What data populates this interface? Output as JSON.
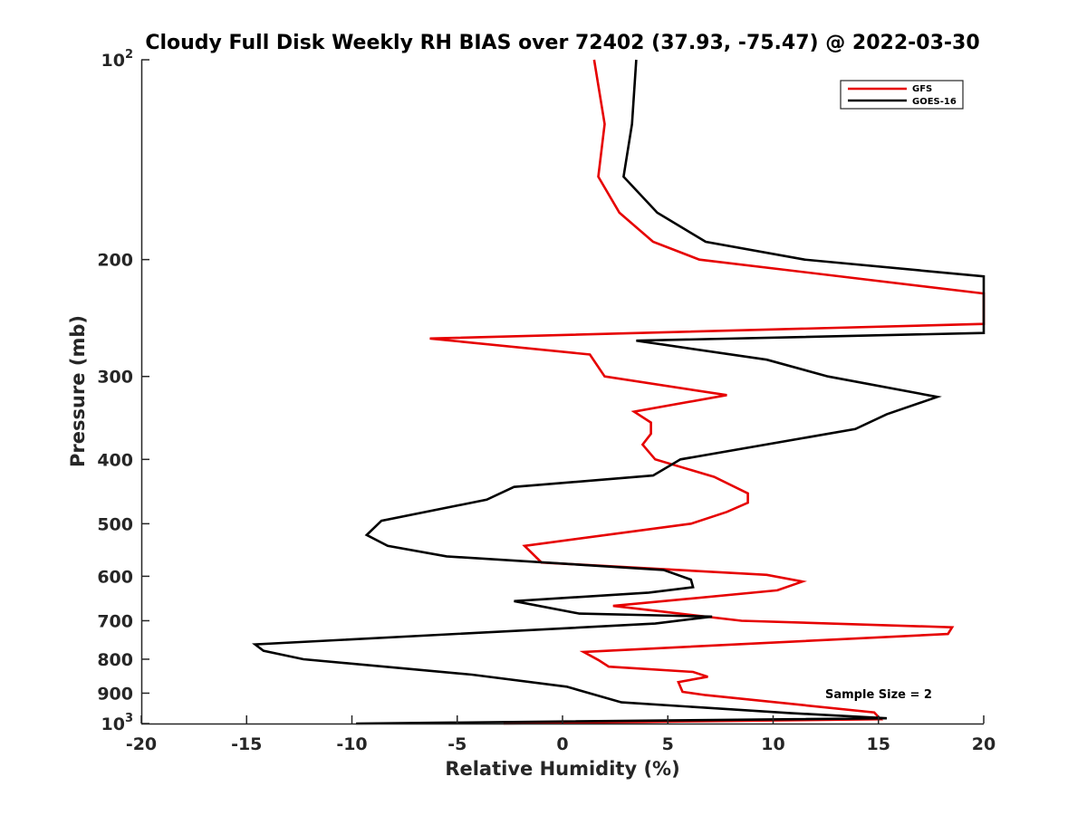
{
  "chart_data": {
    "type": "line",
    "title": "Cloudy Full Disk Weekly RH BIAS over 72402 (37.93, -75.47) @ 2022-03-30",
    "xlabel": "Relative Humidity (%)",
    "ylabel": "Pressure (mb)",
    "xlim": [
      -20,
      20
    ],
    "ylim": [
      100,
      1000
    ],
    "y_scale": "log",
    "y_reversed": true,
    "grid": false,
    "legend_position": "top-right",
    "x_ticks": [
      "-20",
      "-15",
      "-10",
      "-5",
      "0",
      "5",
      "10",
      "15",
      "20"
    ],
    "y_ticks": [
      {
        "value": 100,
        "base": "10",
        "exp": "2"
      },
      {
        "value": 200,
        "label": "200"
      },
      {
        "value": 300,
        "label": "300"
      },
      {
        "value": 400,
        "label": "400"
      },
      {
        "value": 500,
        "label": "500"
      },
      {
        "value": 600,
        "label": "600"
      },
      {
        "value": 700,
        "label": "700"
      },
      {
        "value": 800,
        "label": "800"
      },
      {
        "value": 900,
        "label": "900"
      },
      {
        "value": 1000,
        "base": "10",
        "exp": "3"
      }
    ],
    "annotation": "Sample Size = 2",
    "series": [
      {
        "name": "GFS",
        "color": "#e60000",
        "points": [
          [
            1.5,
            100
          ],
          [
            2.0,
            125
          ],
          [
            1.7,
            150
          ],
          [
            2.7,
            170
          ],
          [
            4.3,
            188
          ],
          [
            6.5,
            200
          ],
          [
            20.0,
            225
          ],
          [
            20.0,
            250
          ],
          [
            -6.3,
            263
          ],
          [
            1.3,
            278
          ],
          [
            2.0,
            300
          ],
          [
            7.8,
            320
          ],
          [
            3.4,
            339
          ],
          [
            4.2,
            352
          ],
          [
            4.2,
            366
          ],
          [
            3.8,
            380
          ],
          [
            4.4,
            400
          ],
          [
            7.2,
            425
          ],
          [
            8.8,
            450
          ],
          [
            8.8,
            465
          ],
          [
            7.8,
            480
          ],
          [
            6.1,
            500
          ],
          [
            -1.8,
            540
          ],
          [
            -1.0,
            572
          ],
          [
            9.7,
            597
          ],
          [
            11.4,
            611
          ],
          [
            10.2,
            630
          ],
          [
            2.4,
            665
          ],
          [
            8.5,
            700
          ],
          [
            18.5,
            716
          ],
          [
            18.3,
            733
          ],
          [
            1.0,
            780
          ],
          [
            1.7,
            802
          ],
          [
            2.2,
            821
          ],
          [
            6.2,
            836
          ],
          [
            6.9,
            850
          ],
          [
            5.5,
            866
          ],
          [
            5.7,
            896
          ],
          [
            6.8,
            906
          ],
          [
            14.8,
            962
          ],
          [
            15.1,
            985
          ],
          [
            -2.8,
            1000
          ]
        ]
      },
      {
        "name": "GOES-16",
        "color": "#000000",
        "points": [
          [
            3.5,
            100
          ],
          [
            3.3,
            125
          ],
          [
            2.9,
            150
          ],
          [
            4.5,
            170
          ],
          [
            6.8,
            188
          ],
          [
            11.5,
            200
          ],
          [
            20.0,
            212
          ],
          [
            20.0,
            258
          ],
          [
            3.5,
            265
          ],
          [
            9.7,
            283
          ],
          [
            12.6,
            300
          ],
          [
            17.8,
            322
          ],
          [
            15.4,
            342
          ],
          [
            13.9,
            360
          ],
          [
            5.6,
            400
          ],
          [
            4.3,
            423
          ],
          [
            -2.3,
            440
          ],
          [
            -3.6,
            460
          ],
          [
            -8.6,
            495
          ],
          [
            -9.3,
            520
          ],
          [
            -8.3,
            540
          ],
          [
            -5.5,
            560
          ],
          [
            4.8,
            587
          ],
          [
            6.1,
            607
          ],
          [
            6.2,
            623
          ],
          [
            4.1,
            635
          ],
          [
            -2.3,
            654
          ],
          [
            0.8,
            683
          ],
          [
            7.1,
            690
          ],
          [
            4.4,
            707
          ],
          [
            -14.6,
            760
          ],
          [
            -14.2,
            777
          ],
          [
            -12.3,
            800
          ],
          [
            -4.3,
            844
          ],
          [
            0.2,
            880
          ],
          [
            2.8,
            929
          ],
          [
            10.7,
            964
          ],
          [
            15.4,
            982
          ],
          [
            -9.8,
            1000
          ]
        ]
      }
    ]
  }
}
